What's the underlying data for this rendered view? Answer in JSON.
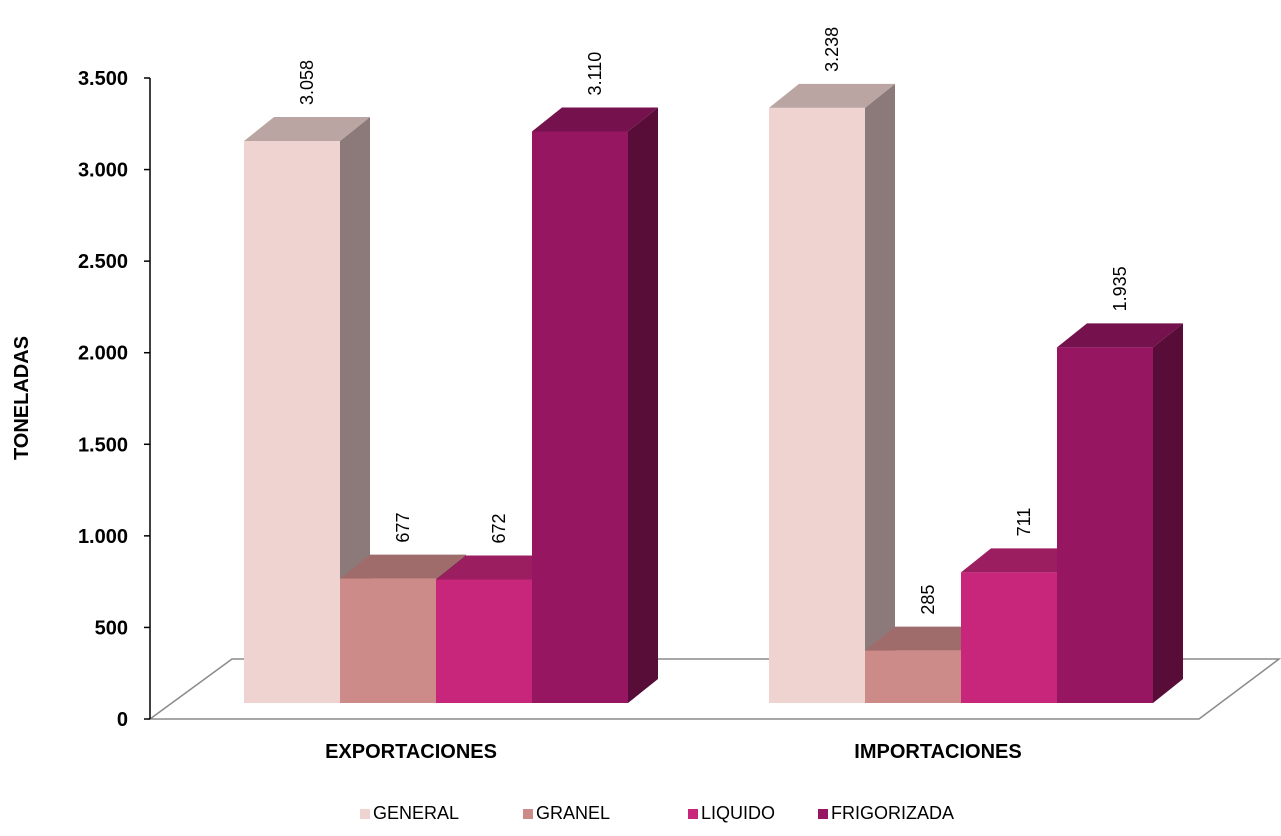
{
  "chart_data": {
    "type": "bar",
    "title": "",
    "xlabel": "",
    "ylabel": "TONELADAS",
    "ylim": [
      0,
      3500
    ],
    "yticks": [
      0,
      500,
      1000,
      1500,
      2000,
      2500,
      3000,
      3500
    ],
    "ytick_labels": [
      "0",
      "500",
      "1.000",
      "1.500",
      "2.000",
      "2.500",
      "3.000",
      "3.500"
    ],
    "categories": [
      "EXPORTACIONES",
      "IMPORTACIONES"
    ],
    "series": [
      {
        "name": "GENERAL",
        "values": [
          3058,
          3238
        ],
        "labels": [
          "3.058",
          "3.238"
        ],
        "color": "#EFD3D0"
      },
      {
        "name": "GRANEL",
        "values": [
          677,
          285
        ],
        "labels": [
          "677",
          "285"
        ],
        "color": "#CC8B89"
      },
      {
        "name": "LIQUIDO",
        "values": [
          672,
          711
        ],
        "labels": [
          "672",
          "711"
        ],
        "color": "#C7267B"
      },
      {
        "name": "FRIGORIZADA",
        "values": [
          3110,
          1935
        ],
        "labels": [
          "3.110",
          "1.935"
        ],
        "color": "#961661"
      }
    ],
    "legend_position": "bottom",
    "grid": false,
    "style": "3d-column"
  }
}
